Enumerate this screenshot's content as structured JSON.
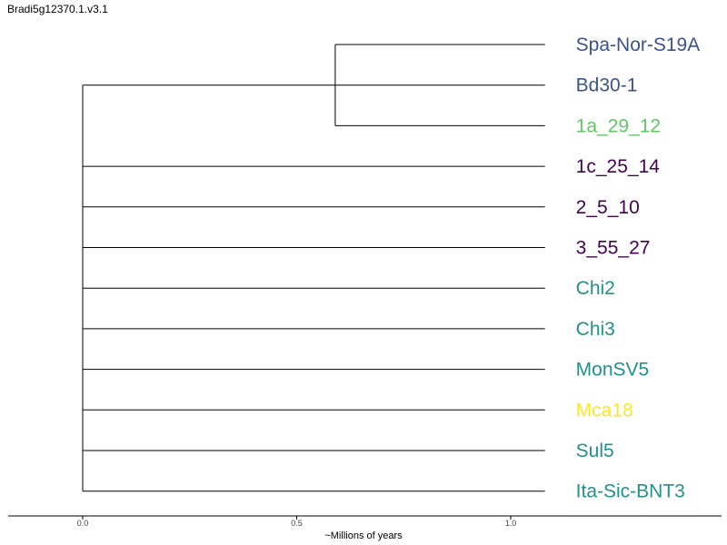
{
  "title": "Bradi5g12370.1.v3.1",
  "axis": {
    "label": "~Millions of years",
    "ticks": [
      0.0,
      0.5,
      1.0
    ],
    "tick_labels": [
      "0.0",
      "0.5",
      "1.0"
    ],
    "range": [
      -0.175,
      1.49
    ]
  },
  "tree": {
    "root_age": 0.0,
    "tip_age": 1.08,
    "clade": {
      "node_age": 0.59,
      "members": [
        "Spa-Nor-S19A",
        "Bd30-1",
        "1a_29_12"
      ]
    },
    "leaves": [
      {
        "name": "Spa-Nor-S19A",
        "color": "#3b528b"
      },
      {
        "name": "Bd30-1",
        "color": "#3b528b"
      },
      {
        "name": "1a_29_12",
        "color": "#5ec962"
      },
      {
        "name": "1c_25_14",
        "color": "#440154"
      },
      {
        "name": "2_5_10",
        "color": "#440154"
      },
      {
        "name": "3_55_27",
        "color": "#440154"
      },
      {
        "name": "Chi2",
        "color": "#21918c"
      },
      {
        "name": "Chi3",
        "color": "#21918c"
      },
      {
        "name": "MonSV5",
        "color": "#21918c"
      },
      {
        "name": "Mca18",
        "color": "#fde725"
      },
      {
        "name": "Sul5",
        "color": "#21918c"
      },
      {
        "name": "Ita-Sic-BNT3",
        "color": "#21918c"
      }
    ]
  }
}
